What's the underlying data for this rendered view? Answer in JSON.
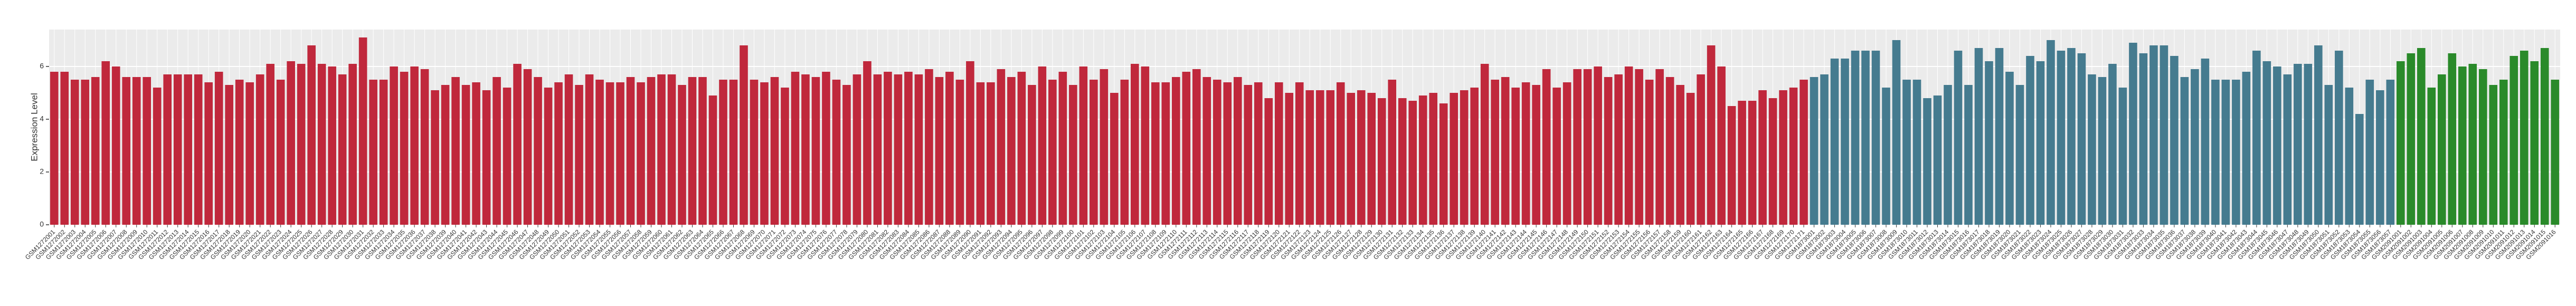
{
  "chart_data": {
    "type": "bar",
    "y_label": "Expression Level",
    "ylim": [
      0,
      7.4
    ],
    "yticks": [
      0,
      2,
      4,
      6
    ],
    "grid": true,
    "series": [
      {
        "color": "#c0283c",
        "categories": [
          "GSM1272001",
          "GSM1272002",
          "GSM1272003",
          "GSM1272004",
          "GSM1272005",
          "GSM1272006",
          "GSM1272007",
          "GSM1272008",
          "GSM1272009",
          "GSM1272010",
          "GSM1272011",
          "GSM1272012",
          "GSM1272013",
          "GSM1272014",
          "GSM1272015",
          "GSM1272016",
          "GSM1272017",
          "GSM1272018",
          "GSM1272019",
          "GSM1272020",
          "GSM1272021",
          "GSM1272022",
          "GSM1272023",
          "GSM1272024",
          "GSM1272025",
          "GSM1272026",
          "GSM1272027",
          "GSM1272028",
          "GSM1272029",
          "GSM1272030",
          "GSM1272031",
          "GSM1272032",
          "GSM1272033",
          "GSM1272034",
          "GSM1272035",
          "GSM1272036",
          "GSM1272037",
          "GSM1272038",
          "GSM1272039",
          "GSM1272040",
          "GSM1272041",
          "GSM1272042",
          "GSM1272043",
          "GSM1272044",
          "GSM1272045",
          "GSM1272046",
          "GSM1272047",
          "GSM1272048",
          "GSM1272049",
          "GSM1272050",
          "GSM1272051",
          "GSM1272052",
          "GSM1272053",
          "GSM1272054",
          "GSM1272055",
          "GSM1272056",
          "GSM1272057",
          "GSM1272058",
          "GSM1272059",
          "GSM1272060",
          "GSM1272061",
          "GSM1272062",
          "GSM1272063",
          "GSM1272064",
          "GSM1272065",
          "GSM1272066",
          "GSM1272067",
          "GSM1272068",
          "GSM1272069",
          "GSM1272070",
          "GSM1272071",
          "GSM1272072",
          "GSM1272073",
          "GSM1272074",
          "GSM1272075",
          "GSM1272076",
          "GSM1272077",
          "GSM1272078",
          "GSM1272079",
          "GSM1272080",
          "GSM1272081",
          "GSM1272082",
          "GSM1272083",
          "GSM1272084",
          "GSM1272085",
          "GSM1272086",
          "GSM1272087",
          "GSM1272088",
          "GSM1272089",
          "GSM1272090",
          "GSM1272091",
          "GSM1272092",
          "GSM1272093",
          "GSM1272094",
          "GSM1272095",
          "GSM1272096",
          "GSM1272097",
          "GSM1272098",
          "GSM1272099",
          "GSM1272100",
          "GSM1272101",
          "GSM1272102",
          "GSM1272103",
          "GSM1272104",
          "GSM1272105",
          "GSM1272106",
          "GSM1272107",
          "GSM1272108",
          "GSM1272109",
          "GSM1272110",
          "GSM1272111",
          "GSM1272112",
          "GSM1272113",
          "GSM1272114",
          "GSM1272115",
          "GSM1272116",
          "GSM1272117",
          "GSM1272118",
          "GSM1272119",
          "GSM1272120",
          "GSM1272121",
          "GSM1272122",
          "GSM1272123",
          "GSM1272124",
          "GSM1272125",
          "GSM1272126",
          "GSM1272127",
          "GSM1272128",
          "GSM1272129",
          "GSM1272130",
          "GSM1272131",
          "GSM1272132",
          "GSM1272133",
          "GSM1272134",
          "GSM1272135",
          "GSM1272136",
          "GSM1272137",
          "GSM1272138",
          "GSM1272139",
          "GSM1272140",
          "GSM1272141",
          "GSM1272142",
          "GSM1272143",
          "GSM1272144",
          "GSM1272145",
          "GSM1272146",
          "GSM1272147",
          "GSM1272148",
          "GSM1272149",
          "GSM1272150",
          "GSM1272151",
          "GSM1272152",
          "GSM1272153",
          "GSM1272154",
          "GSM1272155",
          "GSM1272156",
          "GSM1272157",
          "GSM1272158",
          "GSM1272159",
          "GSM1272160",
          "GSM1272161",
          "GSM1272162",
          "GSM1272163",
          "GSM1272164",
          "GSM1272165",
          "GSM1272166",
          "GSM1272167",
          "GSM1272168",
          "GSM1272169",
          "GSM1272170",
          "GSM1272171"
        ],
        "values": [
          5.8,
          5.8,
          5.5,
          5.5,
          5.6,
          6.2,
          6.0,
          5.6,
          5.6,
          5.6,
          5.2,
          5.7,
          5.7,
          5.7,
          5.7,
          5.4,
          5.8,
          5.3,
          5.5,
          5.4,
          5.7,
          6.1,
          5.5,
          6.2,
          6.1,
          6.8,
          6.1,
          6.0,
          5.7,
          6.1,
          7.1,
          5.5,
          5.5,
          6.0,
          5.8,
          6.0,
          5.9,
          5.1,
          5.3,
          5.6,
          5.3,
          5.4,
          5.1,
          5.6,
          5.2,
          6.1,
          5.9,
          5.6,
          5.2,
          5.4,
          5.7,
          5.3,
          5.7,
          5.5,
          5.4,
          5.4,
          5.6,
          5.4,
          5.6,
          5.7,
          5.7,
          5.3,
          5.6,
          5.6,
          4.9,
          5.5,
          5.5,
          6.8,
          5.5,
          5.4,
          5.6,
          5.2,
          5.8,
          5.7,
          5.6,
          5.8,
          5.5,
          5.3,
          5.7,
          6.2,
          5.7,
          5.8,
          5.7,
          5.8,
          5.7,
          5.9,
          5.6,
          5.8,
          5.5,
          6.2,
          5.4,
          5.4,
          5.9,
          5.6,
          5.8,
          5.3,
          6.0,
          5.5,
          5.8,
          5.3,
          6.0,
          5.5,
          5.9,
          5.0,
          5.5,
          6.1,
          6.0,
          5.4,
          5.4,
          5.6,
          5.8,
          5.9,
          5.6,
          5.5,
          5.4,
          5.6,
          5.3,
          5.4,
          4.8,
          5.4,
          5.0,
          5.4,
          5.1,
          5.1,
          5.1,
          5.4,
          5.0,
          5.1,
          5.0,
          4.8,
          5.5,
          4.8,
          4.7,
          4.9,
          5.0,
          4.6,
          5.0,
          5.1,
          5.2,
          6.1,
          5.5,
          5.6,
          5.2,
          5.4,
          5.3,
          5.9,
          5.2,
          5.4,
          5.9,
          5.9,
          6.0,
          5.6,
          5.7,
          6.0,
          5.9,
          5.5,
          5.9,
          5.6,
          5.3,
          5.0,
          5.7,
          6.8,
          6.0,
          4.5,
          4.7,
          4.7,
          5.1,
          4.8,
          5.1,
          5.2,
          5.5
        ]
      },
      {
        "color": "#457b8f",
        "categories": [
          "GSM1873001",
          "GSM1873002",
          "GSM1873003",
          "GSM1873004",
          "GSM1873005",
          "GSM1873006",
          "GSM1873007",
          "GSM1873008",
          "GSM1873009",
          "GSM1873010",
          "GSM1873011",
          "GSM1873012",
          "GSM1873013",
          "GSM1873014",
          "GSM1873015",
          "GSM1873016",
          "GSM1873017",
          "GSM1873018",
          "GSM1873019",
          "GSM1873020",
          "GSM1873021",
          "GSM1873022",
          "GSM1873023",
          "GSM1873024",
          "GSM1873025",
          "GSM1873026",
          "GSM1873027",
          "GSM1873028",
          "GSM1873029",
          "GSM1873030",
          "GSM1873031",
          "GSM1873032",
          "GSM1873033",
          "GSM1873034",
          "GSM1873035",
          "GSM1873036",
          "GSM1873037",
          "GSM1873038",
          "GSM1873039",
          "GSM1873040",
          "GSM1873041",
          "GSM1873042",
          "GSM1873043",
          "GSM1873044",
          "GSM1873045",
          "GSM1873046",
          "GSM1873047",
          "GSM1873048",
          "GSM1873049",
          "GSM1873050",
          "GSM1873051",
          "GSM1873052",
          "GSM1873053",
          "GSM1873054",
          "GSM1873055",
          "GSM1873056",
          "GSM1873057"
        ],
        "values": [
          5.6,
          5.7,
          6.3,
          6.3,
          6.6,
          6.6,
          6.6,
          5.2,
          7.0,
          5.5,
          5.5,
          4.8,
          4.9,
          5.3,
          6.6,
          5.3,
          6.7,
          6.2,
          6.7,
          5.8,
          5.3,
          6.4,
          6.2,
          7.0,
          6.6,
          6.7,
          6.5,
          5.7,
          5.6,
          6.1,
          5.2,
          6.9,
          6.5,
          6.8,
          6.8,
          6.4,
          5.6,
          5.9,
          6.3,
          5.5,
          5.5,
          5.5,
          5.8,
          6.6,
          6.2,
          6.0,
          5.7,
          6.1,
          6.1,
          6.8,
          5.3,
          6.6,
          5.2,
          4.2,
          5.5,
          5.1,
          5.5
        ]
      },
      {
        "color": "#2a8a2a",
        "categories": [
          "GSM2091001",
          "GSM2091002",
          "GSM2091003",
          "GSM2091004",
          "GSM2091005",
          "GSM2091006",
          "GSM2091007",
          "GSM2091008",
          "GSM2091009",
          "GSM2091010",
          "GSM2091011",
          "GSM2091012",
          "GSM2091013",
          "GSM2091014",
          "GSM2091015",
          "GSM2091016"
        ],
        "values": [
          6.2,
          6.5,
          6.7,
          5.2,
          5.7,
          6.5,
          6.0,
          6.1,
          5.9,
          5.3,
          5.5,
          6.4,
          6.6,
          6.2,
          6.7,
          5.5
        ]
      }
    ]
  }
}
